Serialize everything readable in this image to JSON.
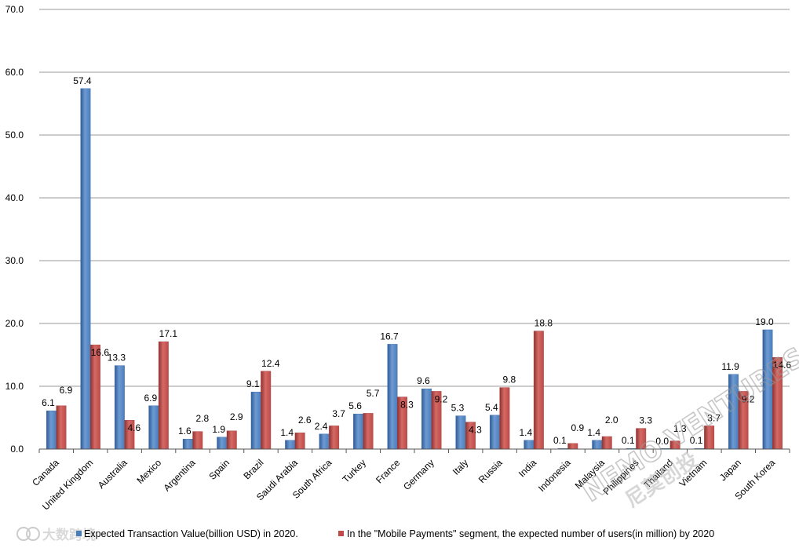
{
  "chart_data": {
    "type": "bar",
    "title": "",
    "xlabel": "",
    "ylabel": "",
    "ylim": [
      0,
      70
    ],
    "yticks": [
      "0.0",
      "10.0",
      "20.0",
      "30.0",
      "40.0",
      "50.0",
      "60.0",
      "70.0"
    ],
    "grid": true,
    "legend_position": "bottom",
    "categories": [
      "Canada",
      "United Kingdom",
      "Australia",
      "Mexico",
      "Argentina",
      "Spain",
      "Brazil",
      "Saudi Arabia",
      "South Africa",
      "Turkey",
      "France",
      "Germany",
      "Italy",
      "Russia",
      "India",
      "Indonesia",
      "Malaysia",
      "Philippines",
      "Thailand",
      "Vietnam",
      "Japan",
      "South Korea"
    ],
    "series": [
      {
        "name": "Expected Transaction Value(billion USD) in 2020.",
        "color": "#4a7ebb",
        "values": [
          6.1,
          57.4,
          13.3,
          6.9,
          1.6,
          1.9,
          9.1,
          1.4,
          2.4,
          5.6,
          16.7,
          9.6,
          5.3,
          5.4,
          1.4,
          0.1,
          1.4,
          0.1,
          0.0,
          0.1,
          11.9,
          19.0
        ],
        "labels": [
          "6.1",
          "57.4",
          "13.3",
          "6.9",
          "1.6",
          "1.9",
          "9.1",
          "1.4",
          "2.4",
          "5.6",
          "16.7",
          "9.6",
          "5.3",
          "5.4",
          "1.4",
          "0.1",
          "1.4",
          "0.1",
          "0.0",
          "0.1",
          "11.9",
          "19.0"
        ]
      },
      {
        "name": "In the \"Mobile Payments\" segment, the expected number of users(in million) by 2020",
        "color": "#be4b48",
        "values": [
          6.9,
          16.6,
          4.6,
          17.1,
          2.8,
          2.9,
          12.4,
          2.6,
          3.7,
          5.7,
          8.3,
          9.2,
          4.3,
          9.8,
          18.8,
          0.9,
          2.0,
          3.3,
          1.3,
          3.7,
          9.2,
          14.6
        ],
        "labels": [
          "6.9",
          "16.6",
          "4.6",
          "17.1",
          "2.8",
          "2.9",
          "12.4",
          "2.6",
          "3.7",
          "5.7",
          "8.3",
          "9.2",
          "4.3",
          "9.8",
          "18.8",
          "0.9",
          "2.0",
          "3.3",
          "1.3",
          "3.7",
          "9.2",
          "14.6"
        ]
      }
    ]
  },
  "watermarks": {
    "bottom_left": "大数跨境",
    "diagonal_en": "NEMO VENTURES",
    "diagonal_cn": "尼莫创投"
  }
}
